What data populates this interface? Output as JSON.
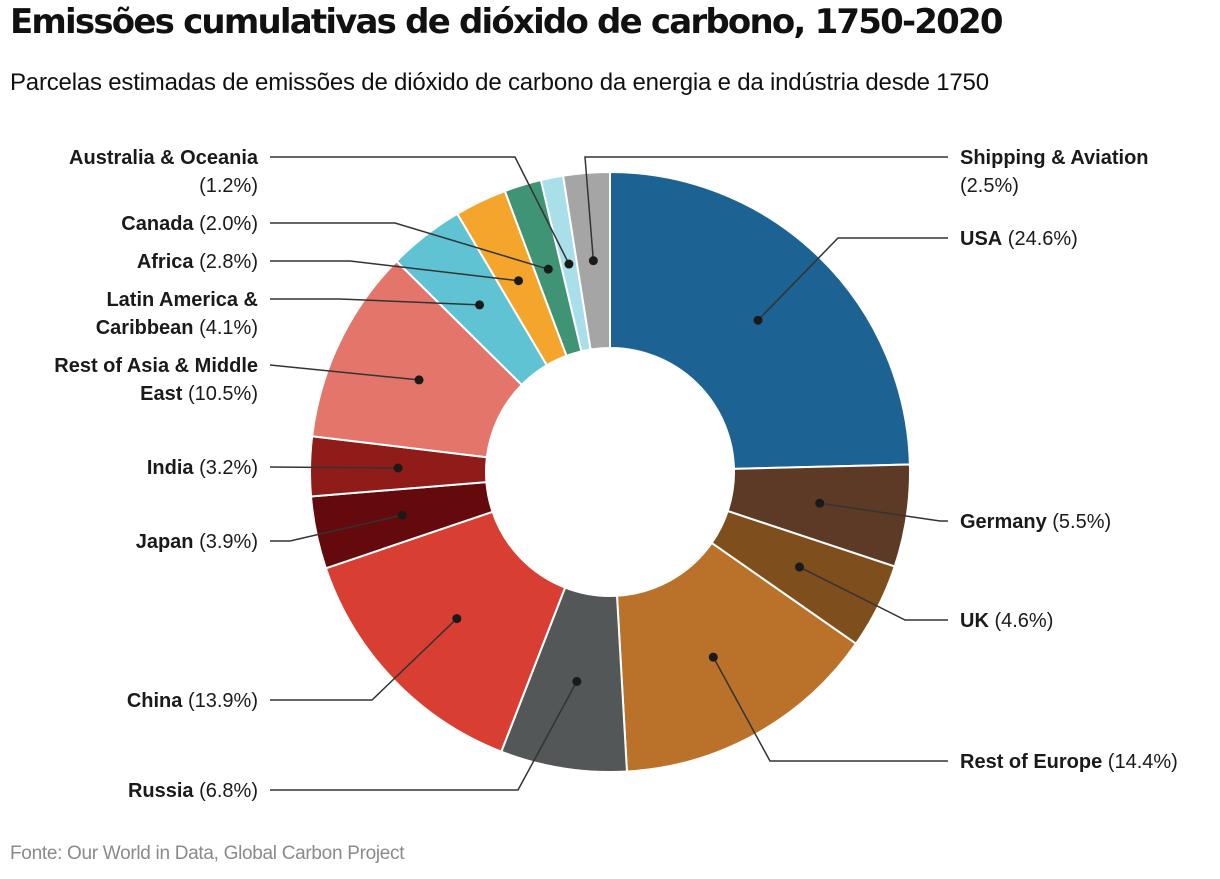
{
  "title": "Emissões cumulativas de dióxido de carbono, 1750-2020",
  "subtitle": "Parcelas estimadas de emissões de dióxido de carbono da energia e da indústria desde 1750",
  "source": "Fonte: Our World in Data, Global Carbon Project",
  "chart_data": {
    "type": "pie",
    "variant": "donut",
    "unit": "%",
    "order": "clockwise from 12 o'clock",
    "slices": [
      {
        "name": "USA",
        "value": 24.6,
        "pct_label": "(24.6%)",
        "color": "#1c6394",
        "label_lines": [
          "USA"
        ],
        "side": "right"
      },
      {
        "name": "Germany",
        "value": 5.5,
        "pct_label": "(5.5%)",
        "color": "#5c3a25",
        "label_lines": [
          "Germany"
        ],
        "side": "right"
      },
      {
        "name": "UK",
        "value": 4.6,
        "pct_label": "(4.6%)",
        "color": "#7e4e1d",
        "label_lines": [
          "UK"
        ],
        "side": "right"
      },
      {
        "name": "Rest of Europe",
        "value": 14.4,
        "pct_label": "(14.4%)",
        "color": "#ba7129",
        "label_lines": [
          "Rest of Europe"
        ],
        "side": "right"
      },
      {
        "name": "Russia",
        "value": 6.8,
        "pct_label": "(6.8%)",
        "color": "#545757",
        "label_lines": [
          "Russia"
        ],
        "side": "left"
      },
      {
        "name": "China",
        "value": 13.9,
        "pct_label": "(13.9%)",
        "color": "#d93e32",
        "label_lines": [
          "China"
        ],
        "side": "left"
      },
      {
        "name": "Japan",
        "value": 3.9,
        "pct_label": "(3.9%)",
        "color": "#640a0c",
        "label_lines": [
          "Japan"
        ],
        "side": "left"
      },
      {
        "name": "India",
        "value": 3.2,
        "pct_label": "(3.2%)",
        "color": "#901c1a",
        "label_lines": [
          "India"
        ],
        "side": "left"
      },
      {
        "name": "Rest of Asia & Middle East",
        "value": 10.5,
        "pct_label": "(10.5%)",
        "color": "#e4756b",
        "label_lines": [
          "Rest of Asia & Middle",
          "East"
        ],
        "side": "left"
      },
      {
        "name": "Latin America & Caribbean",
        "value": 4.1,
        "pct_label": "(4.1%)",
        "color": "#5fc3d3",
        "label_lines": [
          "Latin America &",
          "Caribbean"
        ],
        "side": "left"
      },
      {
        "name": "Africa",
        "value": 2.8,
        "pct_label": "(2.8%)",
        "color": "#f4a62c",
        "label_lines": [
          "Africa"
        ],
        "side": "left"
      },
      {
        "name": "Canada",
        "value": 2.0,
        "pct_label": "(2.0%)",
        "color": "#3e9474",
        "label_lines": [
          "Canada"
        ],
        "side": "left"
      },
      {
        "name": "Australia & Oceania",
        "value": 1.2,
        "pct_label": "(1.2%)",
        "color": "#a8dfe9",
        "label_lines": [
          "Australia & Oceania"
        ],
        "side": "left",
        "pct_on_new_line": true
      },
      {
        "name": "Shipping & Aviation",
        "value": 2.5,
        "pct_label": "(2.5%)",
        "color": "#a5a5a5",
        "label_lines": [
          "Shipping & Aviation"
        ],
        "side": "right",
        "pct_on_new_line": true
      }
    ]
  }
}
